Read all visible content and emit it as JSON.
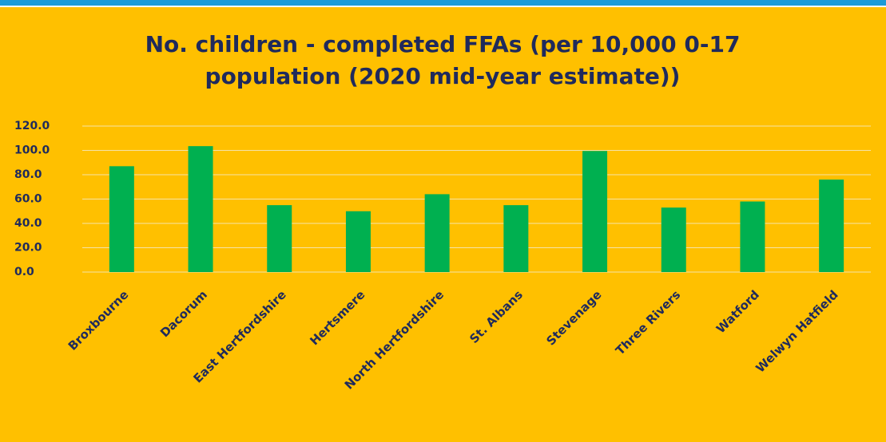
{
  "chart_data": {
    "type": "bar",
    "title": "No. children - completed FFAs (per 10,000 0-17 population (2020 mid-year estimate))",
    "categories": [
      "Broxbourne",
      "Dacorum",
      "East Hertfordshire",
      "Hertsmere",
      "North Hertfordshire",
      "St. Albans",
      "Stevenage",
      "Three Rivers",
      "Watford",
      "Welwyn Hatfield"
    ],
    "values": [
      87,
      103.5,
      55,
      50,
      64,
      55,
      99.5,
      53,
      58,
      76
    ],
    "color": "#00B050",
    "ylim": [
      0,
      120
    ],
    "yticks": [
      {
        "value": 0,
        "label": "0.0"
      },
      {
        "value": 20,
        "label": "20.0"
      },
      {
        "value": 40,
        "label": "40.0"
      },
      {
        "value": 60,
        "label": "60.0"
      },
      {
        "value": 80,
        "label": "80.0"
      },
      {
        "value": 100,
        "label": "100.0"
      },
      {
        "value": 120,
        "label": "120.0"
      }
    ],
    "grid": true
  }
}
